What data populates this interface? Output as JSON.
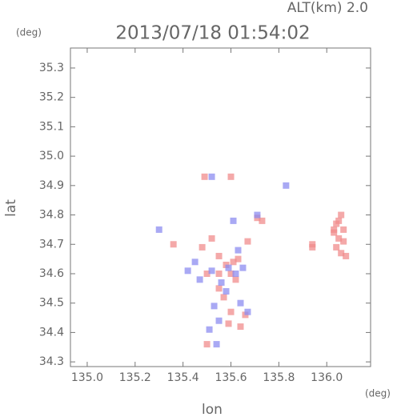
{
  "chart_data": {
    "type": "scatter",
    "title": "2013/07/18 01:54:02",
    "subtitle": "ALT(km) 2.0",
    "x_label": "lon",
    "y_label": "lat",
    "x_unit": "(deg)",
    "y_unit": "(deg)",
    "xlim": [
      134.93,
      136.183
    ],
    "ylim": [
      34.284,
      35.368
    ],
    "xticks": [
      {
        "value": 135,
        "label": "135.0"
      },
      135.2,
      135.4,
      135.6,
      135.8,
      {
        "value": 136,
        "label": "136.0"
      }
    ],
    "yticks": [
      34.3,
      34.4,
      34.5,
      34.6,
      34.7,
      34.8,
      34.9,
      {
        "value": 35,
        "label": "35.0"
      },
      35.1,
      35.2,
      35.3
    ],
    "series": [
      {
        "color": "#f08c8c",
        "x": [
          136.05,
          136.03,
          136.07,
          136.05,
          136.04,
          136.06,
          136.08,
          136.03,
          136.06,
          136.04,
          136.07,
          135.94,
          135.94,
          135.55,
          135.58,
          135.6,
          135.62,
          135.55,
          135.5,
          135.63,
          135.57,
          135.6,
          135.66,
          135.59,
          135.64,
          135.5,
          135.73,
          135.71,
          135.48,
          135.52,
          135.55,
          135.61,
          135.49,
          135.6,
          135.36,
          135.67
        ],
        "y": [
          34.78,
          34.75,
          34.75,
          34.72,
          34.69,
          34.67,
          34.66,
          34.74,
          34.8,
          34.77,
          34.71,
          34.7,
          34.69,
          34.66,
          34.63,
          34.6,
          34.58,
          34.55,
          34.6,
          34.65,
          34.52,
          34.47,
          34.46,
          34.43,
          34.42,
          34.36,
          34.78,
          34.79,
          34.69,
          34.72,
          34.6,
          34.64,
          34.93,
          34.93,
          34.7,
          34.71
        ]
      },
      {
        "color": "#8c8cf0",
        "x": [
          135.45,
          135.47,
          135.52,
          135.62,
          135.56,
          135.65,
          135.53,
          135.58,
          135.64,
          135.67,
          135.51,
          135.55,
          135.61,
          135.83,
          135.3,
          135.71,
          135.42,
          135.63,
          135.52,
          135.59,
          135.54
        ],
        "y": [
          34.64,
          34.58,
          34.61,
          34.6,
          34.57,
          34.62,
          34.49,
          34.54,
          34.5,
          34.47,
          34.41,
          34.44,
          34.78,
          34.9,
          34.75,
          34.8,
          34.61,
          34.68,
          34.93,
          34.62,
          34.36
        ]
      }
    ]
  }
}
